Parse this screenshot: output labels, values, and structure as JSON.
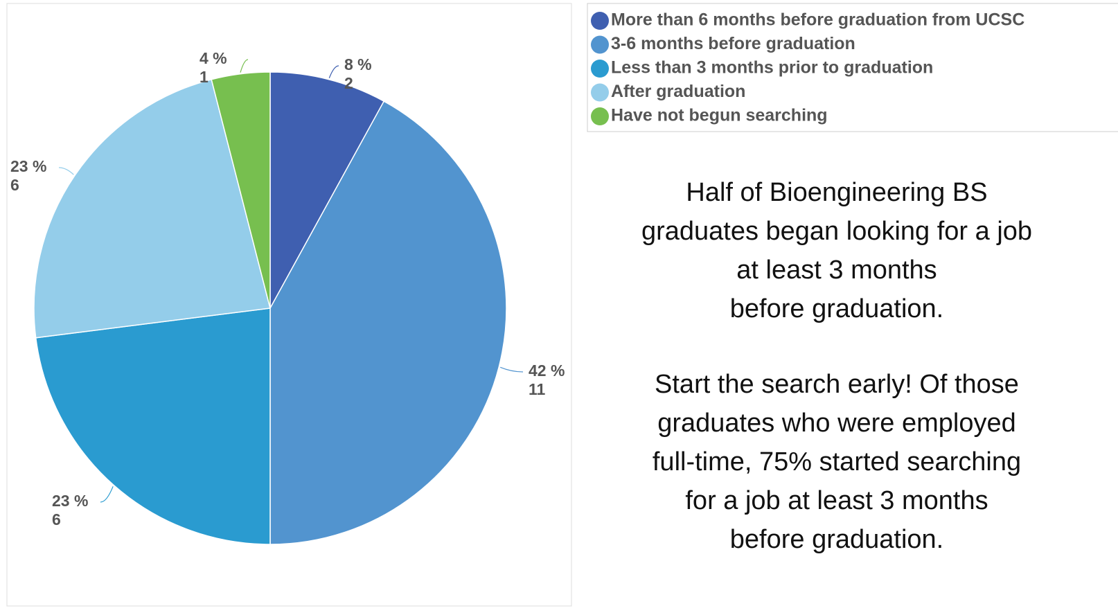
{
  "chart_data": {
    "type": "pie",
    "categories": [
      "More than 6 months before graduation from UCSC",
      "3-6 months before graduation",
      "Less than 3 months prior to graduation",
      "After graduation",
      "Have not begun searching"
    ],
    "values": [
      8,
      42,
      23,
      23,
      4
    ],
    "value_labels": [
      "8 %",
      "42 %",
      "23 %",
      "23 %",
      "4 %"
    ],
    "counts": [
      2,
      11,
      6,
      6,
      1
    ],
    "colors": [
      "#3f5fb0",
      "#5294cf",
      "#2a9bd0",
      "#94cdea",
      "#77bf4f"
    ]
  },
  "notes": [
    [
      "Half of Bioengineering BS",
      "graduates began looking for a job",
      "at least 3 months",
      "before graduation."
    ],
    [
      "Start the search early! Of those",
      "graduates who were employed",
      "full-time, 75% started searching",
      "for a job at least 3 months",
      "before graduation."
    ]
  ]
}
